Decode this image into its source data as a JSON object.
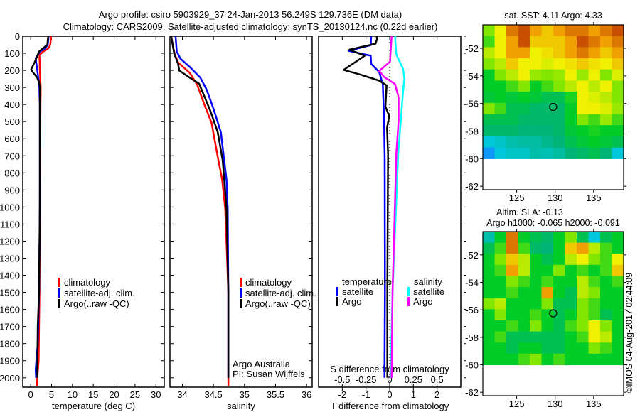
{
  "title": {
    "line1": "Argo profile: csiro 5903929_37 24-Jan-2013 56.249S 129.736E (DM data)",
    "line2": "Climatology: CARS2009. Satellite-adjusted climatology: synTS_20130124.nc (0.22d earlier)"
  },
  "colors": {
    "climatology": "#ff0000",
    "satellite": "#0000ff",
    "argo": "#000000",
    "sal_satellite": "#00ffff",
    "sal_argo": "#ff00ff"
  },
  "chart_data": [
    {
      "type": "line",
      "name": "temperature-profile",
      "xlabel": "temperature (deg C)",
      "ylabel": "depth",
      "xlim": [
        -1.9,
        32
      ],
      "ylim": [
        2055,
        0
      ],
      "xticks": [
        "0",
        "5",
        "10",
        "15",
        "20",
        "25",
        "30"
      ],
      "xtick_values": [
        0,
        5,
        10,
        15,
        20,
        25,
        30
      ],
      "yticks": [
        "0",
        "100",
        "200",
        "300",
        "400",
        "500",
        "600",
        "700",
        "800",
        "900",
        "1000",
        "1100",
        "1200",
        "1300",
        "1400",
        "1500",
        "1600",
        "1700",
        "1800",
        "1900",
        "2000"
      ],
      "ytick_values": [
        0,
        100,
        200,
        300,
        400,
        500,
        600,
        700,
        800,
        900,
        1000,
        1100,
        1200,
        1300,
        1400,
        1500,
        1600,
        1700,
        1800,
        1900,
        2000
      ],
      "legend": [
        "climatology",
        "satellite-adj. clim.",
        "Argo(..raw -QC)"
      ],
      "series": [
        {
          "name": "climatology",
          "depth": [
            0,
            50,
            70,
            90,
            110,
            200,
            300,
            500,
            1000,
            1500,
            1900,
            2000,
            2050
          ],
          "values": [
            4.9,
            4.7,
            4.3,
            3.0,
            2.1,
            2.2,
            2.4,
            2.3,
            2.2,
            2.1,
            1.9,
            1.6,
            1.5
          ]
        },
        {
          "name": "satellite-adj. clim.",
          "depth": [
            0,
            50,
            70,
            90,
            130,
            200,
            300,
            330,
            400,
            1000,
            1500,
            1800,
            1950,
            2000
          ],
          "values": [
            4.3,
            4.1,
            3.5,
            2.2,
            1.2,
            1.6,
            2.1,
            2.1,
            2.2,
            2.2,
            2.0,
            1.7,
            1.2,
            1.3
          ]
        },
        {
          "name": "Argo(..raw -QC)",
          "depth": [
            0,
            50,
            70,
            90,
            150,
            195,
            210,
            240,
            270,
            300,
            1000,
            1500,
            1700,
            2000
          ],
          "values": [
            4.2,
            4.0,
            3.0,
            2.0,
            1.0,
            0.1,
            0.5,
            1.5,
            2.0,
            2.2,
            2.2,
            2.0,
            1.7,
            1.6
          ]
        }
      ]
    },
    {
      "type": "line",
      "name": "salinity-profile",
      "xlabel": "salinity",
      "xlim": [
        33.8,
        36.09
      ],
      "ylim": [
        2055,
        0
      ],
      "xticks": [
        "34",
        "34.5",
        "35",
        "35.5",
        "36"
      ],
      "xtick_values": [
        34,
        34.5,
        35,
        35.5,
        36
      ],
      "legend": [
        "climatology",
        "satellite-adj. clim.",
        "Argo(..raw -QC)"
      ],
      "annotation": [
        "Argo Australia",
        "PI: Susan Wijffels"
      ],
      "series": [
        {
          "name": "climatology",
          "depth": [
            0,
            60,
            104,
            153,
            215,
            285,
            396,
            507,
            688,
            840,
            1007,
            1500,
            2050
          ],
          "values": [
            33.82,
            33.85,
            33.875,
            33.93,
            34.12,
            34.24,
            34.35,
            34.47,
            34.56,
            34.64,
            34.69,
            34.74,
            34.74
          ]
        },
        {
          "name": "satellite-adj. clim.",
          "depth": [
            0,
            90,
            132,
            180,
            243,
            312,
            423,
            562,
            840,
            1007,
            1500,
            2000
          ],
          "values": [
            33.89,
            33.91,
            33.97,
            34.12,
            34.29,
            34.39,
            34.5,
            34.62,
            34.71,
            34.73,
            34.74,
            34.74
          ]
        },
        {
          "name": "Argo(..raw -QC)",
          "depth": [
            0,
            104,
            160,
            201,
            243,
            278,
            340,
            437,
            562,
            729,
            1007,
            1500,
            2000
          ],
          "values": [
            33.82,
            33.87,
            33.93,
            33.95,
            34.12,
            34.27,
            34.34,
            34.45,
            34.57,
            34.65,
            34.71,
            34.74,
            34.74
          ]
        }
      ]
    },
    {
      "type": "line",
      "name": "difference-profile",
      "xlabel": "T difference from climatology",
      "x2label": "S difference from climatology",
      "xlim": [
        -3,
        3
      ],
      "x2lim": [
        -0.75,
        0.75
      ],
      "ylim": [
        2055,
        0
      ],
      "xticks": [
        "-2",
        "-1",
        "0",
        "1",
        "2"
      ],
      "xtick_values": [
        -2,
        -1,
        0,
        1,
        2
      ],
      "x2ticks": [
        "-0.5",
        "-0.25",
        "0",
        "0.25",
        "0.5"
      ],
      "x2tick_values": [
        -0.5,
        -0.25,
        0,
        0.25,
        0.5
      ],
      "legend": {
        "temperature_heading": "temperature",
        "salinity_heading": "salinity",
        "satellite": "satellite",
        "argo": "Argo"
      },
      "series": [
        {
          "name": "temperature satellite",
          "axis": "T",
          "depth": [
            0,
            52,
            86,
            114,
            162,
            210,
            280,
            467,
            717,
            1500,
            2000
          ],
          "values": [
            -0.78,
            -0.8,
            -1.73,
            -0.8,
            -0.78,
            -0.44,
            -0.29,
            -0.24,
            -0.21,
            -0.2,
            -0.22
          ]
        },
        {
          "name": "temperature Argo",
          "axis": "T",
          "depth": [
            0,
            17,
            44,
            79,
            114,
            197,
            225,
            260,
            288,
            412,
            467,
            537,
            690,
            1500,
            2000
          ],
          "values": [
            -0.55,
            -0.53,
            -0.6,
            -1.7,
            -1.05,
            -1.94,
            -1.23,
            -0.44,
            -0.13,
            -0.18,
            -0.02,
            -0.11,
            -0.07,
            -0.1,
            -0.1
          ]
        },
        {
          "name": "salinity satellite",
          "axis": "S",
          "depth": [
            0,
            107,
            190,
            245,
            329,
            495,
            690,
            1500,
            2000
          ],
          "values": [
            0.056,
            0.07,
            0.14,
            0.155,
            0.14,
            0.117,
            0.09,
            0.03,
            0.01
          ]
        },
        {
          "name": "salinity Argo",
          "axis": "S",
          "depth": [
            0,
            149,
            204,
            239,
            280,
            357,
            495,
            690,
            1500,
            2000
          ],
          "values": [
            0.02,
            0.004,
            -0.11,
            -0.056,
            0.056,
            0.094,
            0.094,
            0.07,
            0.03,
            0.02
          ]
        }
      ]
    },
    {
      "type": "heatmap",
      "name": "sst-map",
      "title": "sat. SST: 4.11 Argo: 4.33",
      "xlim": [
        120.6,
        138.9
      ],
      "ylim": [
        -62.25,
        -50.3
      ],
      "data_lat_min": -60,
      "xticks": [
        "125",
        "130",
        "135"
      ],
      "xtick_values": [
        125,
        130,
        135
      ],
      "yticks": [
        "-52",
        "-54",
        "-56",
        "-58",
        "-60",
        "-62"
      ],
      "ytick_values": [
        -52,
        -54,
        -56,
        -58,
        -60,
        -62
      ],
      "marker": {
        "lon": 129.736,
        "lat": -56.249
      },
      "values_normalized": [
        [
          0.6,
          0.7,
          0.85,
          0.9,
          0.8,
          0.75,
          0.8,
          0.85,
          0.85,
          0.8,
          0.85,
          0.9
        ],
        [
          0.55,
          0.7,
          0.8,
          0.9,
          0.75,
          0.75,
          0.75,
          0.8,
          0.9,
          0.85,
          0.8,
          0.85
        ],
        [
          0.65,
          0.7,
          0.8,
          0.8,
          0.7,
          0.72,
          0.75,
          0.8,
          0.85,
          0.8,
          0.75,
          0.8
        ],
        [
          0.6,
          0.65,
          0.75,
          0.7,
          0.7,
          0.68,
          0.7,
          0.72,
          0.75,
          0.72,
          0.7,
          0.75
        ],
        [
          0.5,
          0.6,
          0.65,
          0.7,
          0.62,
          0.6,
          0.62,
          0.7,
          0.62,
          0.7,
          0.6,
          0.68
        ],
        [
          0.5,
          0.5,
          0.55,
          0.6,
          0.5,
          0.55,
          0.6,
          0.65,
          0.7,
          0.65,
          0.7,
          0.6
        ],
        [
          0.48,
          0.5,
          0.48,
          0.5,
          0.48,
          0.45,
          0.45,
          0.52,
          0.7,
          0.68,
          0.65,
          0.6
        ],
        [
          0.6,
          0.55,
          0.45,
          0.45,
          0.42,
          0.42,
          0.42,
          0.5,
          0.7,
          0.7,
          0.68,
          0.62
        ],
        [
          0.45,
          0.45,
          0.45,
          0.42,
          0.42,
          0.42,
          0.42,
          0.5,
          0.6,
          0.55,
          0.62,
          0.55
        ],
        [
          0.42,
          0.42,
          0.42,
          0.4,
          0.4,
          0.4,
          0.42,
          0.48,
          0.5,
          0.52,
          0.5,
          0.5
        ],
        [
          0.3,
          0.32,
          0.35,
          0.36,
          0.36,
          0.38,
          0.4,
          0.45,
          0.48,
          0.5,
          0.48,
          0.45
        ],
        [
          0.22,
          0.3,
          0.32,
          0.32,
          0.35,
          0.34,
          0.36,
          0.4,
          0.42,
          0.45,
          0.4,
          0.3
        ]
      ]
    },
    {
      "type": "heatmap",
      "name": "sla-map",
      "title": "Altim. SLA: -0.13",
      "subtitle": "Argo h1000: -0.065 h2000: -0.091",
      "xlim": [
        120.6,
        138.9
      ],
      "ylim": [
        -62.25,
        -50.3
      ],
      "data_lat_min": -60,
      "xticks": [
        "125",
        "130",
        "135"
      ],
      "xtick_values": [
        125,
        130,
        135
      ],
      "yticks": [
        "-52",
        "-54",
        "-56",
        "-58",
        "-60",
        "-62"
      ],
      "ytick_values": [
        -52,
        -54,
        -56,
        -58,
        -60,
        -62
      ],
      "marker": {
        "lon": 129.736,
        "lat": -56.249
      },
      "values_normalized": [
        [
          0.35,
          0.5,
          0.85,
          0.5,
          0.45,
          0.42,
          0.5,
          0.6,
          0.45,
          0.3,
          0.45,
          0.5
        ],
        [
          0.45,
          0.55,
          0.85,
          0.55,
          0.42,
          0.4,
          0.5,
          0.75,
          0.8,
          0.65,
          0.55,
          0.5
        ],
        [
          0.5,
          0.6,
          0.75,
          0.65,
          0.5,
          0.45,
          0.5,
          0.65,
          0.7,
          0.6,
          0.55,
          0.7
        ],
        [
          0.5,
          0.55,
          0.8,
          0.65,
          0.5,
          0.5,
          0.6,
          0.5,
          0.55,
          0.5,
          0.55,
          0.75
        ],
        [
          0.5,
          0.5,
          0.6,
          0.55,
          0.5,
          0.55,
          0.5,
          0.5,
          0.65,
          0.55,
          0.5,
          0.55
        ],
        [
          0.5,
          0.5,
          0.55,
          0.5,
          0.5,
          0.8,
          0.5,
          0.45,
          0.65,
          0.6,
          0.5,
          0.5
        ],
        [
          0.6,
          0.65,
          0.5,
          0.5,
          0.5,
          0.6,
          0.45,
          0.45,
          0.6,
          0.55,
          0.5,
          0.5
        ],
        [
          0.5,
          0.6,
          0.5,
          0.5,
          0.55,
          0.5,
          0.45,
          0.5,
          0.6,
          0.55,
          0.45,
          0.5
        ],
        [
          0.5,
          0.5,
          0.55,
          0.5,
          0.6,
          0.5,
          0.45,
          0.55,
          0.6,
          0.7,
          0.6,
          0.5
        ],
        [
          0.5,
          0.55,
          0.45,
          0.45,
          0.45,
          0.45,
          0.45,
          0.5,
          0.55,
          0.7,
          0.65,
          0.5
        ],
        [
          0.5,
          0.5,
          0.45,
          0.5,
          0.5,
          0.45,
          0.45,
          0.5,
          0.5,
          0.6,
          0.55,
          0.5
        ],
        [
          0.5,
          0.5,
          0.5,
          0.55,
          0.6,
          0.5,
          0.55,
          0.5,
          0.5,
          0.5,
          0.5,
          0.5
        ]
      ]
    }
  ],
  "footer": {
    "copyright": "©IMOS 04-Aug-2017 02:44:09"
  }
}
